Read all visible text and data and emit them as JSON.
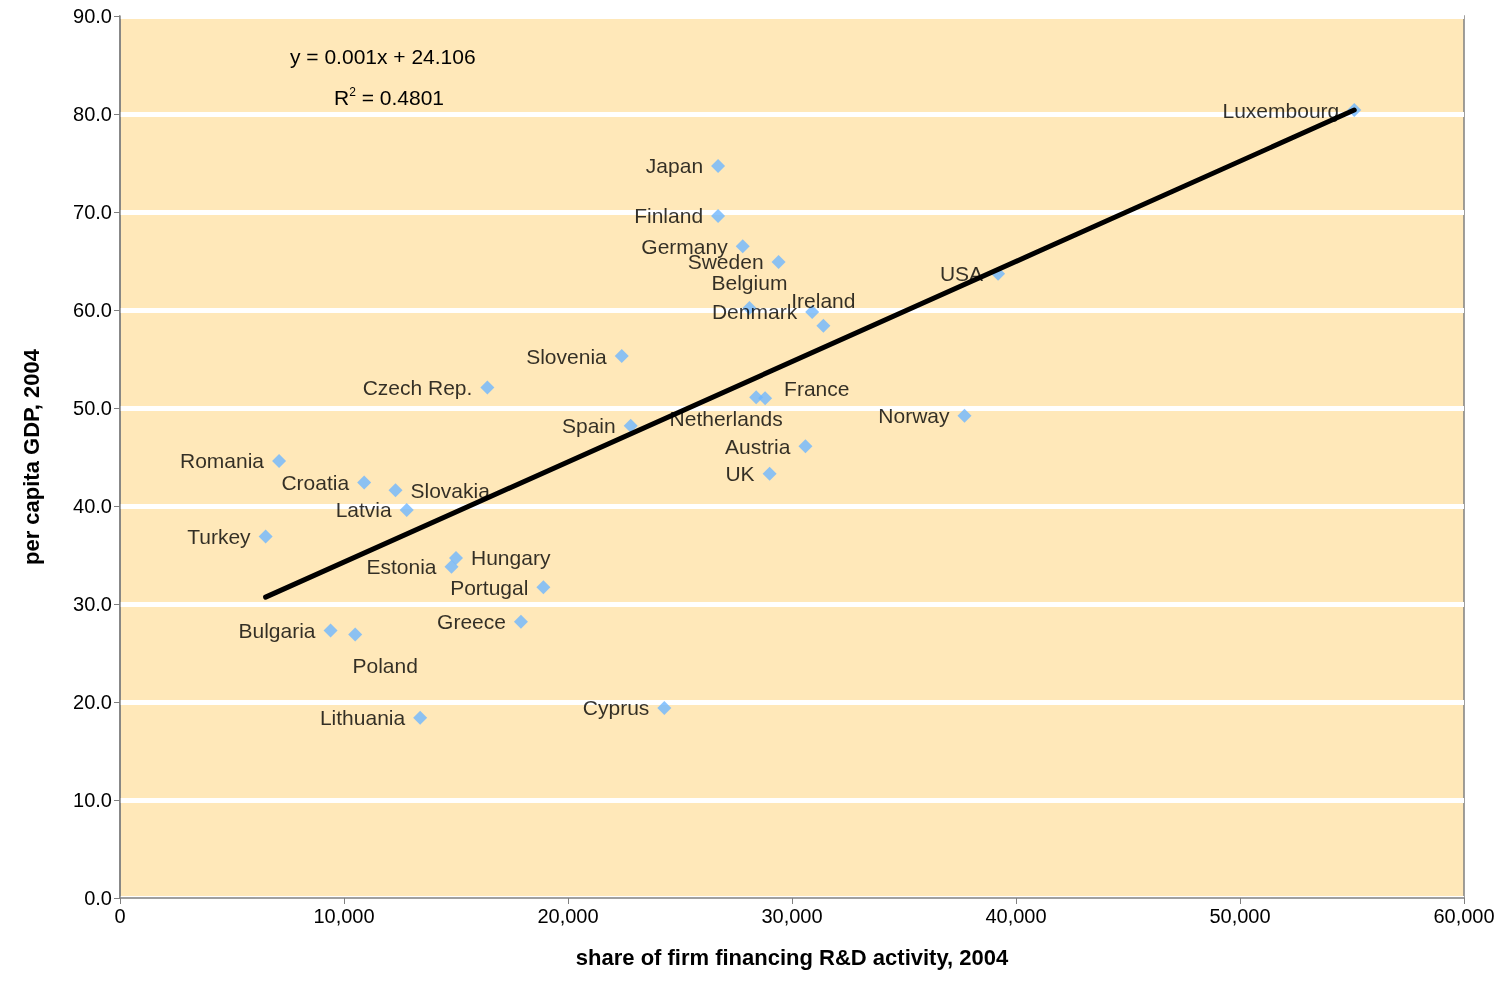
{
  "chart_data": {
    "type": "scatter",
    "xlabel": "share of firm financing R&D activity, 2004",
    "ylabel": "per capita GDP, 2004",
    "annotations": [
      "y = 0.001x + 24.106",
      "R$^{2}$ = 0.4801"
    ],
    "xlim": [
      0,
      60000
    ],
    "xticks": [
      0,
      {
        "value": 10000,
        "label": "10,000"
      },
      {
        "value": 20000,
        "label": "20,000"
      },
      {
        "value": 30000,
        "label": "30,000"
      },
      {
        "value": 40000,
        "label": "40,000"
      },
      {
        "value": 50000,
        "label": "50,000"
      },
      {
        "value": 60000,
        "label": "60,000"
      }
    ],
    "ylim": [
      0,
      90
    ],
    "yticks": [
      {
        "value": 0,
        "label": "0.0"
      },
      {
        "value": 10,
        "label": "10.0"
      },
      {
        "value": 20,
        "label": "20.0"
      },
      {
        "value": 30,
        "label": "30.0"
      },
      {
        "value": 40,
        "label": "40.0"
      },
      {
        "value": 50,
        "label": "50.0"
      },
      {
        "value": 60,
        "label": "60.0"
      },
      {
        "value": 70,
        "label": "70.0"
      },
      {
        "value": 80,
        "label": "80.0"
      },
      {
        "value": 90,
        "label": "90.0"
      }
    ],
    "grid": "y",
    "series": [
      {
        "color": "#6fb7ff",
        "marker": "diamond",
        "x": [
          55100,
          39200,
          26700,
          26700,
          27800,
          29400,
          28100,
          30900,
          31400,
          22400,
          16400,
          28400,
          28800,
          22800,
          37700,
          30600,
          29000,
          7100,
          10900,
          12300,
          12800,
          6500,
          14800,
          15000,
          18900,
          17900,
          9400,
          10500,
          13400,
          24300
        ],
        "values": [
          80.4,
          63.7,
          74.7,
          69.6,
          66.5,
          64.9,
          60.2,
          59.8,
          58.4,
          55.3,
          52.1,
          51.1,
          51.0,
          48.2,
          49.2,
          46.1,
          43.3,
          44.6,
          42.4,
          41.6,
          39.6,
          36.9,
          33.8,
          34.7,
          31.7,
          28.2,
          27.3,
          26.9,
          18.4,
          19.4
        ],
        "value_labels": [
          "Luxembourg",
          "USA",
          "Japan",
          "Finland",
          "Germany",
          "Sweden",
          "Belgium",
          "Denmark",
          "Ireland",
          "Slovenia",
          "Czech Rep.",
          "Netherlands",
          "France",
          "Spain",
          "Norway",
          "Austria",
          "UK",
          "Romania",
          "Croatia",
          "Slovakia",
          "Latvia",
          "Turkey",
          "Estonia",
          "Hungary",
          "Portugal",
          "Greece",
          "Bulgaria",
          "Poland",
          "Lithuania",
          "Cyprus"
        ]
      },
      {
        "type": "line",
        "color": "#000000",
        "marker": "none",
        "line_style": "solid",
        "x": [
          6500,
          55100
        ],
        "values": [
          30.7,
          80.4
        ]
      }
    ]
  }
}
